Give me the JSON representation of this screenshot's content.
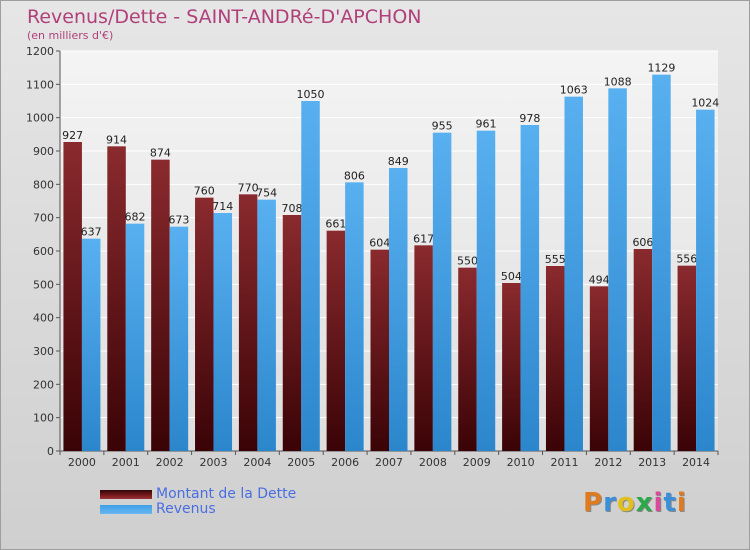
{
  "title": "Revenus/Dette - SAINT-ANDRé-D'APCHON",
  "subtitle": "(en milliers d'€)",
  "brand": "Proxiti",
  "colors": {
    "debt": "#7a1a1e",
    "revenue": "#3e9fe6",
    "title": "#b0407a",
    "legend_text": "#4a6ee0"
  },
  "chart_data": {
    "type": "bar",
    "categories": [
      "2000",
      "2001",
      "2002",
      "2003",
      "2004",
      "2005",
      "2006",
      "2007",
      "2008",
      "2009",
      "2010",
      "2011",
      "2012",
      "2013",
      "2014"
    ],
    "series": [
      {
        "name": "Montant de la Dette",
        "values": [
          927,
          914,
          874,
          760,
          770,
          708,
          661,
          604,
          617,
          550,
          504,
          555,
          494,
          606,
          556
        ]
      },
      {
        "name": "Revenus",
        "values": [
          637,
          682,
          673,
          714,
          754,
          1050,
          806,
          849,
          955,
          961,
          978,
          1063,
          1088,
          1129,
          1024
        ]
      }
    ],
    "ylim": [
      0,
      1200
    ],
    "yticks": [
      0,
      100,
      200,
      300,
      400,
      500,
      600,
      700,
      800,
      900,
      1000,
      1100,
      1200
    ],
    "grid": true,
    "legend": "bottom-left"
  }
}
